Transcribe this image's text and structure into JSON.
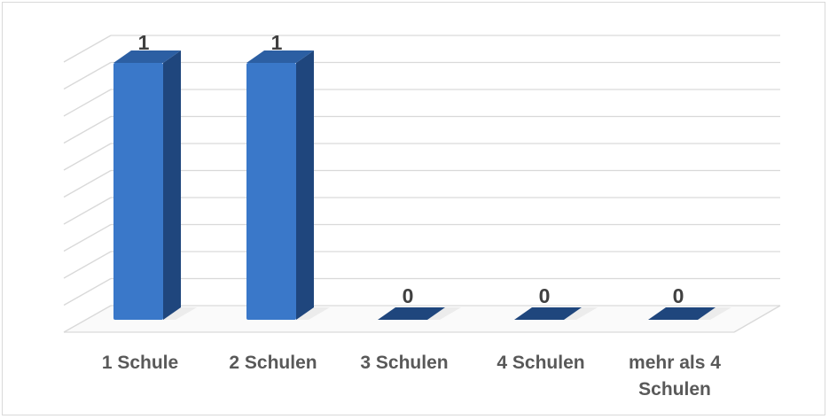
{
  "chart_data": {
    "type": "bar",
    "categories": [
      "1 Schule",
      "2 Schulen",
      "3 Schulen",
      "4 Schulen",
      "mehr als 4 Schulen"
    ],
    "category_lines": [
      [
        "1 Schule"
      ],
      [
        "2 Schulen"
      ],
      [
        "3 Schulen"
      ],
      [
        "4 Schulen"
      ],
      [
        "mehr als 4",
        "Schulen"
      ]
    ],
    "values": [
      1,
      1,
      0,
      0,
      0
    ],
    "data_labels": [
      "1",
      "1",
      "0",
      "0",
      "0"
    ],
    "ylim": [
      0,
      1
    ],
    "grid": true,
    "three_d": true,
    "colors": {
      "bar_front": "#3a78c9",
      "bar_side": "#1f467d",
      "bar_top": "#2c5fa3",
      "grid": "#d9d9d9",
      "shadow": "#e6e6e6"
    }
  }
}
